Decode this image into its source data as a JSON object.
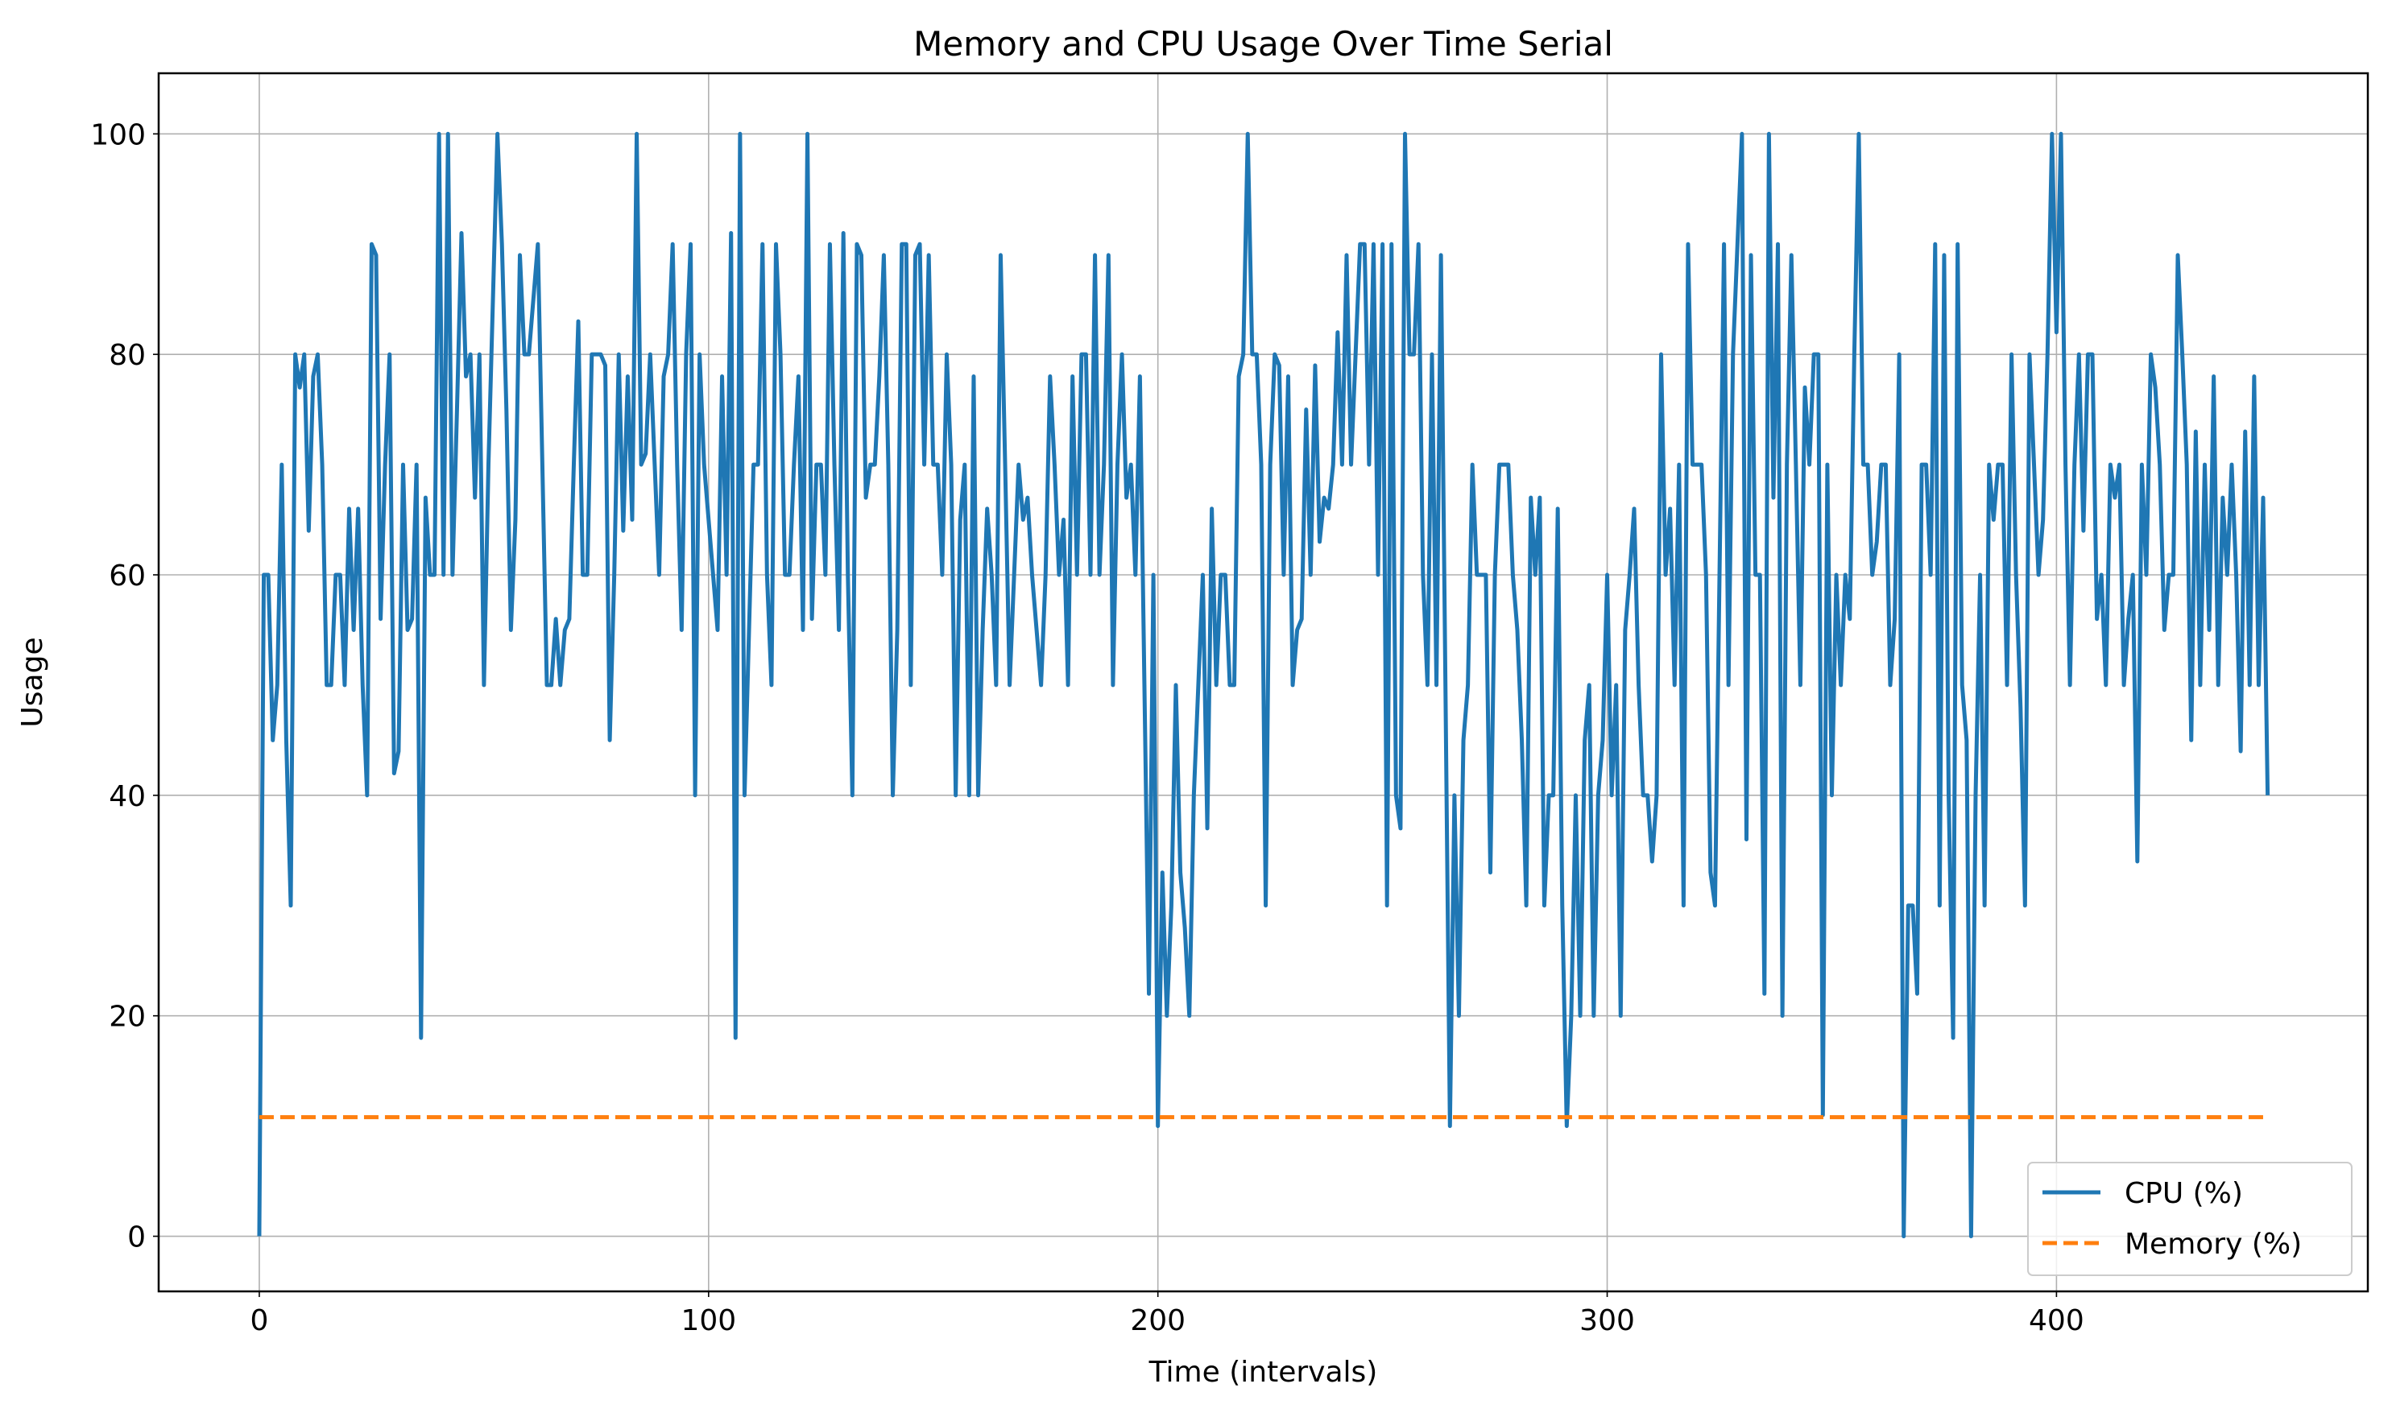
{
  "chart_data": {
    "type": "line",
    "title": "Memory and CPU Usage Over Time Serial",
    "x_label": "Time (intervals)",
    "y_label": "Usage",
    "x": [
      0,
      1,
      2,
      3,
      4,
      5,
      6,
      7,
      8,
      9,
      10,
      11,
      12,
      13,
      14,
      15,
      16,
      17,
      18,
      19,
      20,
      21,
      22,
      23,
      24,
      25,
      26,
      27,
      28,
      29,
      30,
      31,
      32,
      33,
      34,
      35,
      36,
      37,
      38,
      39,
      40,
      41,
      42,
      43,
      44,
      45,
      46,
      47,
      48,
      49,
      50,
      51,
      52,
      53,
      54,
      55,
      56,
      57,
      58,
      59,
      60,
      61,
      62,
      63,
      64,
      65,
      66,
      67,
      68,
      69,
      70,
      71,
      72,
      73,
      74,
      75,
      76,
      77,
      78,
      79,
      80,
      81,
      82,
      83,
      84,
      85,
      86,
      87,
      88,
      89,
      90,
      91,
      92,
      93,
      94,
      95,
      96,
      97,
      98,
      99,
      100,
      101,
      102,
      103,
      104,
      105,
      106,
      107,
      108,
      109,
      110,
      111,
      112,
      113,
      114,
      115,
      116,
      117,
      118,
      119,
      120,
      121,
      122,
      123,
      124,
      125,
      126,
      127,
      128,
      129,
      130,
      131,
      132,
      133,
      134,
      135,
      136,
      137,
      138,
      139,
      140,
      141,
      142,
      143,
      144,
      145,
      146,
      147,
      148,
      149,
      150,
      151,
      152,
      153,
      154,
      155,
      156,
      157,
      158,
      159,
      160,
      161,
      162,
      163,
      164,
      165,
      166,
      167,
      168,
      169,
      170,
      171,
      172,
      173,
      174,
      175,
      176,
      177,
      178,
      179,
      180,
      181,
      182,
      183,
      184,
      185,
      186,
      187,
      188,
      189,
      190,
      191,
      192,
      193,
      194,
      195,
      196,
      197,
      198,
      199,
      200,
      201,
      202,
      203,
      204,
      205,
      206,
      207,
      208,
      209,
      210,
      211,
      212,
      213,
      214,
      215,
      216,
      217,
      218,
      219,
      220,
      221,
      222,
      223,
      224,
      225,
      226,
      227,
      228,
      229,
      230,
      231,
      232,
      233,
      234,
      235,
      236,
      237,
      238,
      239,
      240,
      241,
      242,
      243,
      244,
      245,
      246,
      247,
      248,
      249,
      250,
      251,
      252,
      253,
      254,
      255,
      256,
      257,
      258,
      259,
      260,
      261,
      262,
      263,
      264,
      265,
      266,
      267,
      268,
      269,
      270,
      271,
      272,
      273,
      274,
      275,
      276,
      277,
      278,
      279,
      280,
      281,
      282,
      283,
      284,
      285,
      286,
      287,
      288,
      289,
      290,
      291,
      292,
      293,
      294,
      295,
      296,
      297,
      298,
      299,
      300,
      301,
      302,
      303,
      304,
      305,
      306,
      307,
      308,
      309,
      310,
      311,
      312,
      313,
      314,
      315,
      316,
      317,
      318,
      319,
      320,
      321,
      322,
      323,
      324,
      325,
      326,
      327,
      328,
      329,
      330,
      331,
      332,
      333,
      334,
      335,
      336,
      337,
      338,
      339,
      340,
      341,
      342,
      343,
      344,
      345,
      346,
      347,
      348,
      349,
      350,
      351,
      352,
      353,
      354,
      355,
      356,
      357,
      358,
      359,
      360,
      361,
      362,
      363,
      364,
      365,
      366,
      367,
      368,
      369,
      370,
      371,
      372,
      373,
      374,
      375,
      376,
      377,
      378,
      379,
      380,
      381,
      382,
      383,
      384,
      385,
      386,
      387,
      388,
      389,
      390,
      391,
      392,
      393,
      394,
      395,
      396,
      397,
      398,
      399,
      400,
      401,
      402,
      403,
      404,
      405,
      406,
      407,
      408,
      409,
      410,
      411,
      412,
      413,
      414,
      415,
      416,
      417,
      418,
      419,
      420,
      421,
      422,
      423,
      424,
      425,
      426,
      427,
      428,
      429,
      430,
      431,
      432,
      433,
      434,
      435,
      436,
      437,
      438,
      439,
      440,
      441,
      442,
      443,
      444,
      445,
      446,
      447
    ],
    "series": [
      {
        "name": "CPU (%)",
        "color": "#1f77b4",
        "dash": false,
        "values": [
          0,
          60,
          60,
          45,
          50,
          70,
          45,
          30,
          80,
          77,
          80,
          64,
          78,
          80,
          70,
          50,
          50,
          60,
          60,
          50,
          66,
          55,
          66,
          50,
          40,
          90,
          89,
          56,
          70,
          80,
          42,
          44,
          70,
          55,
          56,
          70,
          18,
          67,
          60,
          60,
          100,
          60,
          100,
          60,
          75,
          91,
          78,
          80,
          67,
          80,
          50,
          70,
          85,
          100,
          90,
          75,
          55,
          65,
          89,
          80,
          80,
          85,
          90,
          70,
          50,
          50,
          56,
          50,
          55,
          56,
          70,
          83,
          60,
          60,
          80,
          80,
          80,
          79,
          45,
          60,
          80,
          64,
          78,
          65,
          100,
          70,
          71,
          80,
          70,
          60,
          78,
          80,
          90,
          70,
          55,
          80,
          90,
          40,
          80,
          70,
          65,
          60,
          55,
          78,
          60,
          91,
          18,
          100,
          40,
          55,
          70,
          70,
          90,
          60,
          50,
          90,
          80,
          60,
          60,
          70,
          78,
          55,
          100,
          56,
          70,
          70,
          60,
          90,
          70,
          55,
          91,
          60,
          40,
          90,
          89,
          67,
          70,
          70,
          78,
          89,
          70,
          40,
          55,
          90,
          90,
          50,
          89,
          90,
          70,
          89,
          70,
          70,
          60,
          80,
          70,
          40,
          65,
          70,
          40,
          78,
          40,
          55,
          66,
          60,
          50,
          89,
          70,
          50,
          60,
          70,
          65,
          67,
          60,
          55,
          50,
          60,
          78,
          70,
          60,
          65,
          50,
          78,
          60,
          80,
          80,
          60,
          89,
          60,
          70,
          89,
          50,
          70,
          80,
          67,
          70,
          60,
          78,
          50,
          22,
          60,
          10,
          33,
          20,
          30,
          50,
          33,
          28,
          20,
          40,
          50,
          60,
          37,
          66,
          50,
          60,
          60,
          50,
          50,
          78,
          80,
          100,
          80,
          80,
          70,
          30,
          70,
          80,
          79,
          60,
          78,
          50,
          55,
          56,
          75,
          60,
          79,
          63,
          67,
          66,
          70,
          82,
          70,
          89,
          70,
          80,
          90,
          90,
          70,
          90,
          60,
          90,
          30,
          90,
          40,
          37,
          100,
          80,
          80,
          90,
          60,
          50,
          80,
          50,
          89,
          50,
          10,
          40,
          20,
          45,
          50,
          70,
          60,
          60,
          60,
          33,
          60,
          70,
          70,
          70,
          60,
          55,
          45,
          30,
          67,
          60,
          67,
          30,
          40,
          40,
          66,
          30,
          10,
          20,
          40,
          20,
          45,
          50,
          20,
          40,
          45,
          60,
          40,
          50,
          20,
          55,
          60,
          66,
          50,
          40,
          40,
          34,
          40,
          80,
          60,
          66,
          50,
          70,
          30,
          90,
          70,
          70,
          70,
          60,
          33,
          30,
          60,
          90,
          50,
          80,
          90,
          100,
          36,
          89,
          60,
          60,
          22,
          100,
          67,
          90,
          20,
          70,
          89,
          70,
          50,
          77,
          70,
          80,
          80,
          11,
          70,
          40,
          60,
          50,
          60,
          56,
          80,
          100,
          70,
          70,
          60,
          63,
          70,
          70,
          50,
          56,
          80,
          0,
          30,
          30,
          22,
          70,
          70,
          60,
          90,
          30,
          89,
          40,
          18,
          90,
          50,
          45,
          0,
          40,
          60,
          30,
          70,
          65,
          70,
          70,
          50,
          80,
          60,
          48,
          30,
          80,
          70,
          60,
          65,
          80,
          100,
          82,
          100,
          70,
          50,
          70,
          80,
          64,
          80,
          80,
          56,
          60,
          50,
          70,
          67,
          70,
          50,
          56,
          60,
          34,
          70,
          60,
          80,
          77,
          70,
          55,
          60,
          60,
          89,
          80,
          70,
          45,
          73,
          50,
          70,
          55,
          78,
          50,
          67,
          60,
          70,
          60,
          44,
          73,
          50,
          78,
          50,
          67,
          40
        ]
      },
      {
        "name": "Memory (%)",
        "color": "#ff7f0e",
        "dash": true,
        "x": [
          0,
          447
        ],
        "values": [
          10.8,
          10.8
        ]
      }
    ],
    "xlim": [
      -22.4,
      469.3
    ],
    "ylim": [
      -5,
      105.5
    ],
    "xticks": [
      0,
      100,
      200,
      300,
      400
    ],
    "yticks": [
      0,
      20,
      40,
      60,
      80,
      100
    ],
    "grid": true,
    "legend_position": "lower right"
  }
}
